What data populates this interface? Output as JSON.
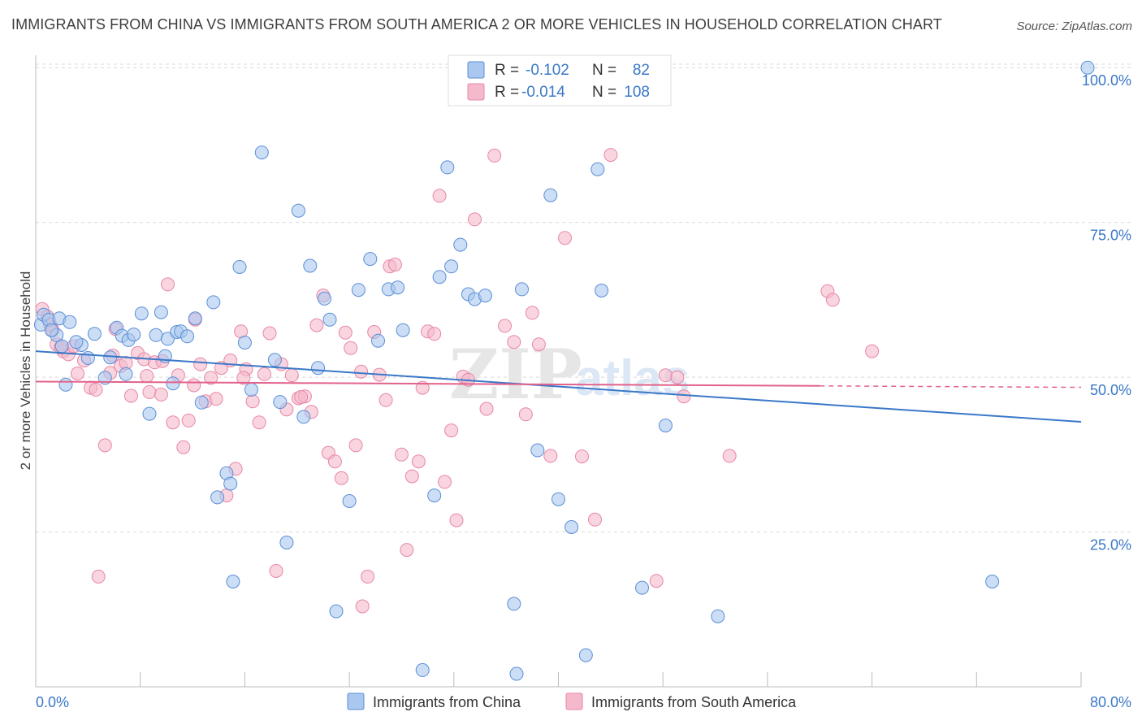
{
  "title": "IMMIGRANTS FROM CHINA VS IMMIGRANTS FROM SOUTH AMERICA 2 OR MORE VEHICLES IN HOUSEHOLD CORRELATION CHART",
  "source": "Source: ZipAtlas.com",
  "watermark": {
    "zip": "ZIP",
    "atlas": "atlas"
  },
  "colors": {
    "blue_fill": "#aac8ef",
    "blue_stroke": "#5b8ed6",
    "blue_line": "#3a78c8",
    "pink_fill": "#f5b9cc",
    "pink_stroke": "#e886a6",
    "pink_line": "#e2628b",
    "tick_text": "#3a78c8",
    "grid": "#d9d9d9"
  },
  "legend": {
    "rows": [
      {
        "r_label": "R =",
        "r_value": "-0.102",
        "n_label": "N =",
        "n_value": "82"
      },
      {
        "r_label": "R =",
        "r_value": "-0.014",
        "n_label": "N =",
        "n_value": "108"
      }
    ]
  },
  "chart_data": {
    "type": "scatter",
    "title": "IMMIGRANTS FROM CHINA VS IMMIGRANTS FROM SOUTH AMERICA 2 OR MORE VEHICLES IN HOUSEHOLD CORRELATION CHART",
    "xlabel": "",
    "ylabel": "2 or more Vehicles in Household",
    "xlim": [
      0,
      80
    ],
    "ylim": [
      0,
      102
    ],
    "x_tick_labels": [
      "0.0%",
      "80.0%"
    ],
    "y_ticks": [
      25,
      50,
      75,
      100
    ],
    "y_tick_labels": [
      "25.0%",
      "50.0%",
      "75.0%",
      "100.0%"
    ],
    "grid": true,
    "legend_position": "top-center",
    "series": [
      {
        "name": "Immigrants from China",
        "color": "#aac8ef",
        "trend": {
          "x": [
            0,
            80
          ],
          "y": [
            54.2,
            42.8
          ]
        },
        "points": [
          [
            0.4,
            58.5
          ],
          [
            0.6,
            60.1
          ],
          [
            1.0,
            59.3
          ],
          [
            1.6,
            56.8
          ],
          [
            1.8,
            59.5
          ],
          [
            2.0,
            55.0
          ],
          [
            2.6,
            58.9
          ],
          [
            3.5,
            55.2
          ],
          [
            4.5,
            57.0
          ],
          [
            5.3,
            49.9
          ],
          [
            5.7,
            53.2
          ],
          [
            6.2,
            58.0
          ],
          [
            6.6,
            56.7
          ],
          [
            7.1,
            56.0
          ],
          [
            7.5,
            56.9
          ],
          [
            8.1,
            60.3
          ],
          [
            8.7,
            44.1
          ],
          [
            9.2,
            56.8
          ],
          [
            9.6,
            60.5
          ],
          [
            10.1,
            56.2
          ],
          [
            10.5,
            49.0
          ],
          [
            10.8,
            57.3
          ],
          [
            11.1,
            57.4
          ],
          [
            11.6,
            56.6
          ],
          [
            12.2,
            59.5
          ],
          [
            12.7,
            45.9
          ],
          [
            13.6,
            62.1
          ],
          [
            13.9,
            30.6
          ],
          [
            14.6,
            34.5
          ],
          [
            14.9,
            32.8
          ],
          [
            15.1,
            17.0
          ],
          [
            15.6,
            67.8
          ],
          [
            16.0,
            55.6
          ],
          [
            16.5,
            48.0
          ],
          [
            17.3,
            86.3
          ],
          [
            18.3,
            52.8
          ],
          [
            18.7,
            46.0
          ],
          [
            19.2,
            23.3
          ],
          [
            20.1,
            76.9
          ],
          [
            20.5,
            43.6
          ],
          [
            21.0,
            68.0
          ],
          [
            21.6,
            51.5
          ],
          [
            22.1,
            62.7
          ],
          [
            22.5,
            59.3
          ],
          [
            23.0,
            12.2
          ],
          [
            24.0,
            30.0
          ],
          [
            24.7,
            64.1
          ],
          [
            25.6,
            69.1
          ],
          [
            26.2,
            55.9
          ],
          [
            27.0,
            64.2
          ],
          [
            27.7,
            64.5
          ],
          [
            28.1,
            57.6
          ],
          [
            29.6,
            2.7
          ],
          [
            30.5,
            30.9
          ],
          [
            30.9,
            66.2
          ],
          [
            31.5,
            83.9
          ],
          [
            31.8,
            67.9
          ],
          [
            32.5,
            71.4
          ],
          [
            33.1,
            63.4
          ],
          [
            33.6,
            62.6
          ],
          [
            34.4,
            63.2
          ],
          [
            36.6,
            13.4
          ],
          [
            37.2,
            64.2
          ],
          [
            36.8,
            2.1
          ],
          [
            38.4,
            38.2
          ],
          [
            39.4,
            79.4
          ],
          [
            40.0,
            30.3
          ],
          [
            41.0,
            25.8
          ],
          [
            42.1,
            5.1
          ],
          [
            43.0,
            83.6
          ],
          [
            43.3,
            64.0
          ],
          [
            46.4,
            16.0
          ],
          [
            48.2,
            42.2
          ],
          [
            52.2,
            11.4
          ],
          [
            73.2,
            17.0
          ],
          [
            80.5,
            100.0
          ],
          [
            1.2,
            57.6
          ],
          [
            2.3,
            48.8
          ],
          [
            3.1,
            55.7
          ],
          [
            4.0,
            53.1
          ],
          [
            6.9,
            50.5
          ],
          [
            9.9,
            53.4
          ]
        ]
      },
      {
        "name": "Immigrants from South America",
        "color": "#f5b9cc",
        "trend": {
          "x": [
            0,
            60
          ],
          "y": [
            49.3,
            48.6
          ]
        },
        "points": [
          [
            0.5,
            61.0
          ],
          [
            0.9,
            59.8
          ],
          [
            1.3,
            57.6
          ],
          [
            1.6,
            55.3
          ],
          [
            2.1,
            54.2
          ],
          [
            2.5,
            53.7
          ],
          [
            2.9,
            55.0
          ],
          [
            3.2,
            50.6
          ],
          [
            3.7,
            52.7
          ],
          [
            4.2,
            48.3
          ],
          [
            4.8,
            17.8
          ],
          [
            5.3,
            39.0
          ],
          [
            5.7,
            50.7
          ],
          [
            6.1,
            57.8
          ],
          [
            6.5,
            51.8
          ],
          [
            6.9,
            52.3
          ],
          [
            7.3,
            47.0
          ],
          [
            7.8,
            53.9
          ],
          [
            8.3,
            52.9
          ],
          [
            8.7,
            47.6
          ],
          [
            9.1,
            52.4
          ],
          [
            9.6,
            47.2
          ],
          [
            10.1,
            65.0
          ],
          [
            10.5,
            42.7
          ],
          [
            10.9,
            50.3
          ],
          [
            11.3,
            38.7
          ],
          [
            11.7,
            43.0
          ],
          [
            12.2,
            59.3
          ],
          [
            12.6,
            52.1
          ],
          [
            13.0,
            46.1
          ],
          [
            13.4,
            49.9
          ],
          [
            13.8,
            46.5
          ],
          [
            14.2,
            51.5
          ],
          [
            14.6,
            30.9
          ],
          [
            14.9,
            52.7
          ],
          [
            15.3,
            35.2
          ],
          [
            15.7,
            57.4
          ],
          [
            16.1,
            51.3
          ],
          [
            16.6,
            46.1
          ],
          [
            17.1,
            42.7
          ],
          [
            17.5,
            50.5
          ],
          [
            17.9,
            57.1
          ],
          [
            18.4,
            18.7
          ],
          [
            18.8,
            52.1
          ],
          [
            19.2,
            44.8
          ],
          [
            19.6,
            50.3
          ],
          [
            20.1,
            46.6
          ],
          [
            20.6,
            46.9
          ],
          [
            21.1,
            44.4
          ],
          [
            21.5,
            58.4
          ],
          [
            22.0,
            63.2
          ],
          [
            22.4,
            37.8
          ],
          [
            22.9,
            36.4
          ],
          [
            23.4,
            33.7
          ],
          [
            23.7,
            57.2
          ],
          [
            24.1,
            54.7
          ],
          [
            24.5,
            39.0
          ],
          [
            25.0,
            13.0
          ],
          [
            25.4,
            17.8
          ],
          [
            25.9,
            57.3
          ],
          [
            26.3,
            50.4
          ],
          [
            26.8,
            46.3
          ],
          [
            27.1,
            67.9
          ],
          [
            27.5,
            68.2
          ],
          [
            28.0,
            37.5
          ],
          [
            28.4,
            22.1
          ],
          [
            28.8,
            34.0
          ],
          [
            29.3,
            36.4
          ],
          [
            29.6,
            48.3
          ],
          [
            30.0,
            57.4
          ],
          [
            30.5,
            57.0
          ],
          [
            30.9,
            79.3
          ],
          [
            31.3,
            33.1
          ],
          [
            31.8,
            41.4
          ],
          [
            32.2,
            26.9
          ],
          [
            32.7,
            50.1
          ],
          [
            33.1,
            49.6
          ],
          [
            33.6,
            75.5
          ],
          [
            34.5,
            44.9
          ],
          [
            35.1,
            85.8
          ],
          [
            35.9,
            58.3
          ],
          [
            36.6,
            55.7
          ],
          [
            37.5,
            44.0
          ],
          [
            38.0,
            60.4
          ],
          [
            38.5,
            55.3
          ],
          [
            39.4,
            37.3
          ],
          [
            40.5,
            72.5
          ],
          [
            41.8,
            37.2
          ],
          [
            42.8,
            27.0
          ],
          [
            44.0,
            85.9
          ],
          [
            47.5,
            17.1
          ],
          [
            48.2,
            50.3
          ],
          [
            49.1,
            50.0
          ],
          [
            49.6,
            46.9
          ],
          [
            53.1,
            37.3
          ],
          [
            60.6,
            63.9
          ],
          [
            61.0,
            62.5
          ],
          [
            64.0,
            54.2
          ],
          [
            1.1,
            58.5
          ],
          [
            1.9,
            54.8
          ],
          [
            4.6,
            48.0
          ],
          [
            5.9,
            53.5
          ],
          [
            8.5,
            50.2
          ],
          [
            9.7,
            52.6
          ],
          [
            12.1,
            48.7
          ],
          [
            15.9,
            49.9
          ],
          [
            20.3,
            46.8
          ],
          [
            24.9,
            50.9
          ]
        ]
      }
    ]
  }
}
